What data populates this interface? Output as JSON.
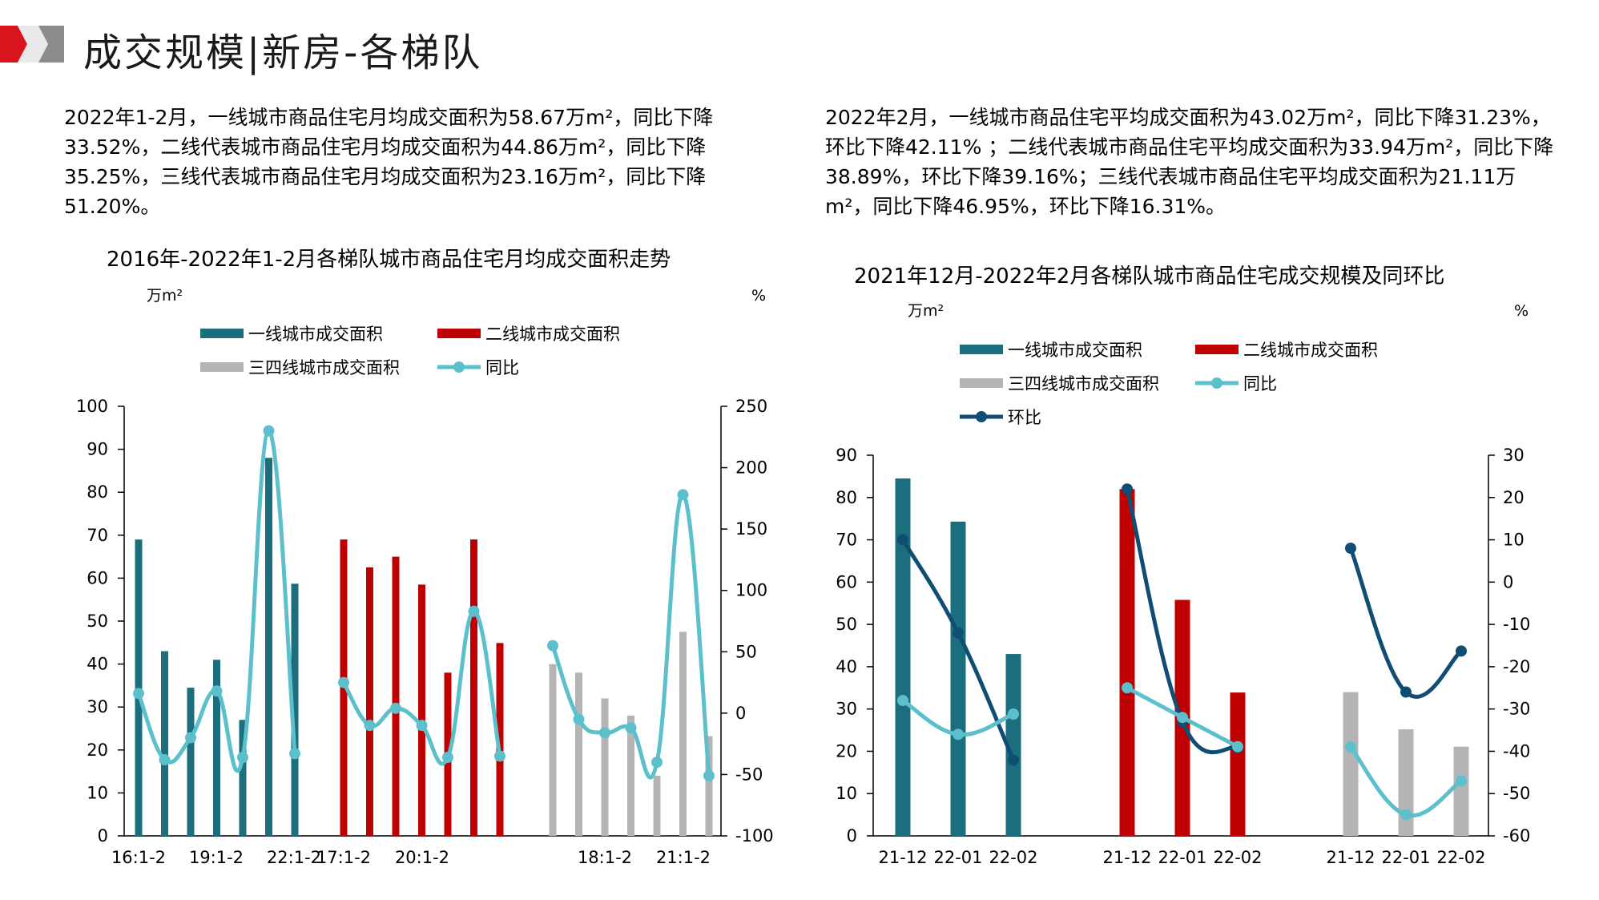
{
  "header": {
    "title": "成交规模|新房-各梯队"
  },
  "left": {
    "paragraph": "2022年1-2月，一线城市商品住宅月均成交面积为58.67万m²，同比下降33.52%，二线代表城市商品住宅月均成交面积为44.86万m²，同比下降35.25%，三线代表城市商品住宅月均成交面积为23.16万m²，同比下降51.20%。"
  },
  "right": {
    "paragraph": "2022年2月，一线城市商品住宅平均成交面积为43.02万m²，同比下降31.23%，环比下降42.11% ；二线代表城市商品住宅平均成交面积为33.94万m²，同比下降38.89%，环比下降39.16%；三线代表城市商品住宅平均成交面积为21.11万m²，同比下降46.95%，环比下降16.31%。"
  },
  "colors": {
    "tier1": "#1a6e7d",
    "tier2": "#c00000",
    "tier34": "#b4b4b4",
    "yoy": "#5bc0cc",
    "mom": "#0f4d73",
    "logo_red": "#d9141c",
    "logo_gray": "#8c8c8c"
  },
  "chart_data": [
    {
      "type": "bar",
      "title": "2016年-2022年1-2月各梯队城市商品住宅月均成交面积走势",
      "ylabel": "万m²",
      "y2label": "%",
      "ylim": [
        0,
        100
      ],
      "y2lim": [
        -100,
        250
      ],
      "yticks": [
        "0",
        "10",
        "20",
        "30",
        "40",
        "50",
        "60",
        "70",
        "80",
        "90",
        "100"
      ],
      "y2ticks": [
        "-100",
        "-50",
        "0",
        "50",
        "100",
        "150",
        "200",
        "250"
      ],
      "legend": [
        "一线城市成交面积",
        "二线城市成交面积",
        "三四线城市成交面积",
        "同比"
      ],
      "legend_position": "top",
      "groups": [
        {
          "series": "一线城市成交面积",
          "x": [
            "16:1-2",
            "17:1-2",
            "18:1-2",
            "19:1-2",
            "20:1-2",
            "21:1-2",
            "22:1-2"
          ],
          "values": [
            69,
            43,
            34.5,
            41,
            27,
            88,
            58.7
          ],
          "yoy": [
            16,
            -38,
            -20,
            18,
            -36,
            230,
            -33
          ]
        },
        {
          "series": "二线城市成交面积",
          "x": [
            "16:1-2",
            "17:1-2",
            "18:1-2",
            "19:1-2",
            "20:1-2",
            "21:1-2",
            "22:1-2"
          ],
          "values": [
            69,
            62.5,
            65,
            58.5,
            38,
            69,
            44.9
          ],
          "yoy": [
            25,
            -10,
            4,
            -10,
            -36,
            83,
            -35
          ]
        },
        {
          "series": "三四线城市成交面积",
          "x": [
            "16:1-2",
            "17:1-2",
            "18:1-2",
            "19:1-2",
            "20:1-2",
            "21:1-2",
            "22:1-2"
          ],
          "values": [
            40,
            38,
            32,
            28,
            14,
            47.5,
            23.2
          ],
          "yoy": [
            55,
            -5,
            -16,
            -12,
            -40,
            178,
            -51
          ]
        }
      ],
      "x_tick_labels": [
        "16:1-2",
        "19:1-2",
        "22:1-2",
        "17:1-2",
        "20:1-2",
        "18:1-2",
        "21:1-2"
      ]
    },
    {
      "type": "bar",
      "title": "2021年12月-2022年2月各梯队城市商品住宅成交规模及同环比",
      "ylabel": "万m²",
      "y2label": "%",
      "ylim": [
        0,
        90
      ],
      "y2lim": [
        -60,
        30
      ],
      "yticks": [
        "0",
        "10",
        "20",
        "30",
        "40",
        "50",
        "60",
        "70",
        "80",
        "90"
      ],
      "y2ticks": [
        "-60",
        "-50",
        "-40",
        "-30",
        "-20",
        "-10",
        "0",
        "10",
        "20",
        "30"
      ],
      "legend": [
        "一线城市成交面积",
        "二线城市成交面积",
        "三四线城市成交面积",
        "同比",
        "环比"
      ],
      "legend_position": "top",
      "groups": [
        {
          "series": "一线城市成交面积",
          "x": [
            "21-12",
            "22-01",
            "22-02"
          ],
          "values": [
            84.5,
            74.3,
            43.0
          ],
          "yoy": [
            -28,
            -36,
            -31.2
          ],
          "mom": [
            10,
            -12,
            -42.1
          ]
        },
        {
          "series": "二线城市成交面积",
          "x": [
            "21-12",
            "22-01",
            "22-02"
          ],
          "values": [
            82,
            55.8,
            33.9
          ],
          "yoy": [
            -25,
            -32,
            -38.9
          ],
          "mom": [
            22,
            -33,
            -39.2
          ]
        },
        {
          "series": "三四线城市成交面积",
          "x": [
            "21-12",
            "22-01",
            "22-02"
          ],
          "values": [
            34,
            25.2,
            21.1
          ],
          "yoy": [
            -39,
            -55,
            -47.0
          ],
          "mom": [
            8,
            -26,
            -16.3
          ]
        }
      ]
    }
  ]
}
